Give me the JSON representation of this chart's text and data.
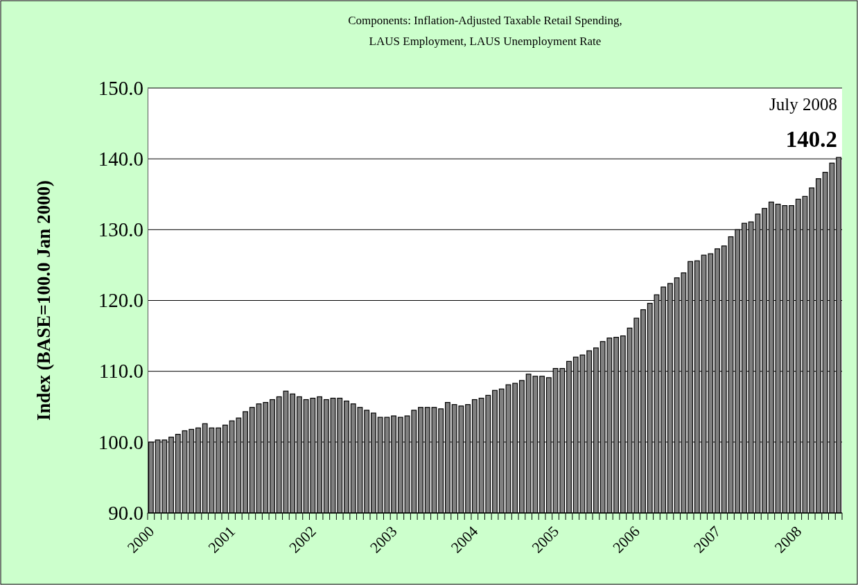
{
  "chart_data": {
    "type": "bar",
    "title": "Components: Inflation-Adjusted Taxable Retail Spending,",
    "subtitle": "LAUS Employment, LAUS Unemployment Rate",
    "ylabel": "Index (BASE=100.0 Jan 2000)",
    "annotations": [
      "July 2008",
      "140.2"
    ],
    "categories": [
      "2000",
      null,
      null,
      null,
      null,
      null,
      null,
      null,
      null,
      null,
      null,
      null,
      "2001",
      null,
      null,
      null,
      null,
      null,
      null,
      null,
      null,
      null,
      null,
      null,
      "2002",
      null,
      null,
      null,
      null,
      null,
      null,
      null,
      null,
      null,
      null,
      null,
      "2003",
      null,
      null,
      null,
      null,
      null,
      null,
      null,
      null,
      null,
      null,
      null,
      "2004",
      null,
      null,
      null,
      null,
      null,
      null,
      null,
      null,
      null,
      null,
      null,
      "2005",
      null,
      null,
      null,
      null,
      null,
      null,
      null,
      null,
      null,
      null,
      null,
      "2006",
      null,
      null,
      null,
      null,
      null,
      null,
      null,
      null,
      null,
      null,
      null,
      "2007",
      null,
      null,
      null,
      null,
      null,
      null,
      null,
      null,
      null,
      null,
      null,
      "2008",
      null,
      null,
      null,
      null,
      null,
      null
    ],
    "values": [
      100.0,
      100.3,
      100.3,
      100.7,
      101.1,
      101.6,
      101.8,
      102.0,
      102.6,
      102.0,
      102.0,
      102.4,
      103.0,
      103.4,
      104.3,
      104.9,
      105.4,
      105.6,
      106.0,
      106.4,
      107.2,
      106.8,
      106.4,
      106.0,
      106.2,
      106.4,
      106.0,
      106.2,
      106.2,
      105.8,
      105.4,
      104.9,
      104.5,
      104.1,
      103.5,
      103.5,
      103.7,
      103.5,
      103.7,
      104.5,
      104.9,
      104.9,
      104.9,
      104.7,
      105.6,
      105.3,
      105.1,
      105.3,
      106.0,
      106.2,
      106.6,
      107.3,
      107.5,
      108.1,
      108.3,
      108.7,
      109.6,
      109.3,
      109.3,
      109.1,
      110.4,
      110.4,
      111.4,
      112.0,
      112.3,
      112.9,
      113.3,
      114.2,
      114.7,
      114.8,
      115.0,
      116.1,
      117.5,
      118.7,
      119.6,
      120.8,
      121.9,
      122.4,
      123.2,
      123.9,
      125.5,
      125.6,
      126.4,
      126.6,
      127.3,
      127.7,
      129.0,
      130.0,
      130.9,
      131.1,
      132.2,
      133.0,
      133.9,
      133.6,
      133.4,
      133.4,
      134.3,
      134.7,
      135.9,
      137.2,
      138.1,
      139.4,
      140.2
    ],
    "color": "#808080",
    "ylim": [
      90,
      150
    ],
    "yticks": [
      {
        "value": 90,
        "label": "90.0"
      },
      {
        "value": 100,
        "label": "100.0"
      },
      {
        "value": 110,
        "label": "110.0"
      },
      {
        "value": 120,
        "label": "120.0"
      },
      {
        "value": 130,
        "label": "130.0"
      },
      {
        "value": 140,
        "label": "140.0"
      },
      {
        "value": 150,
        "label": "150.0"
      }
    ],
    "grid": "y"
  }
}
